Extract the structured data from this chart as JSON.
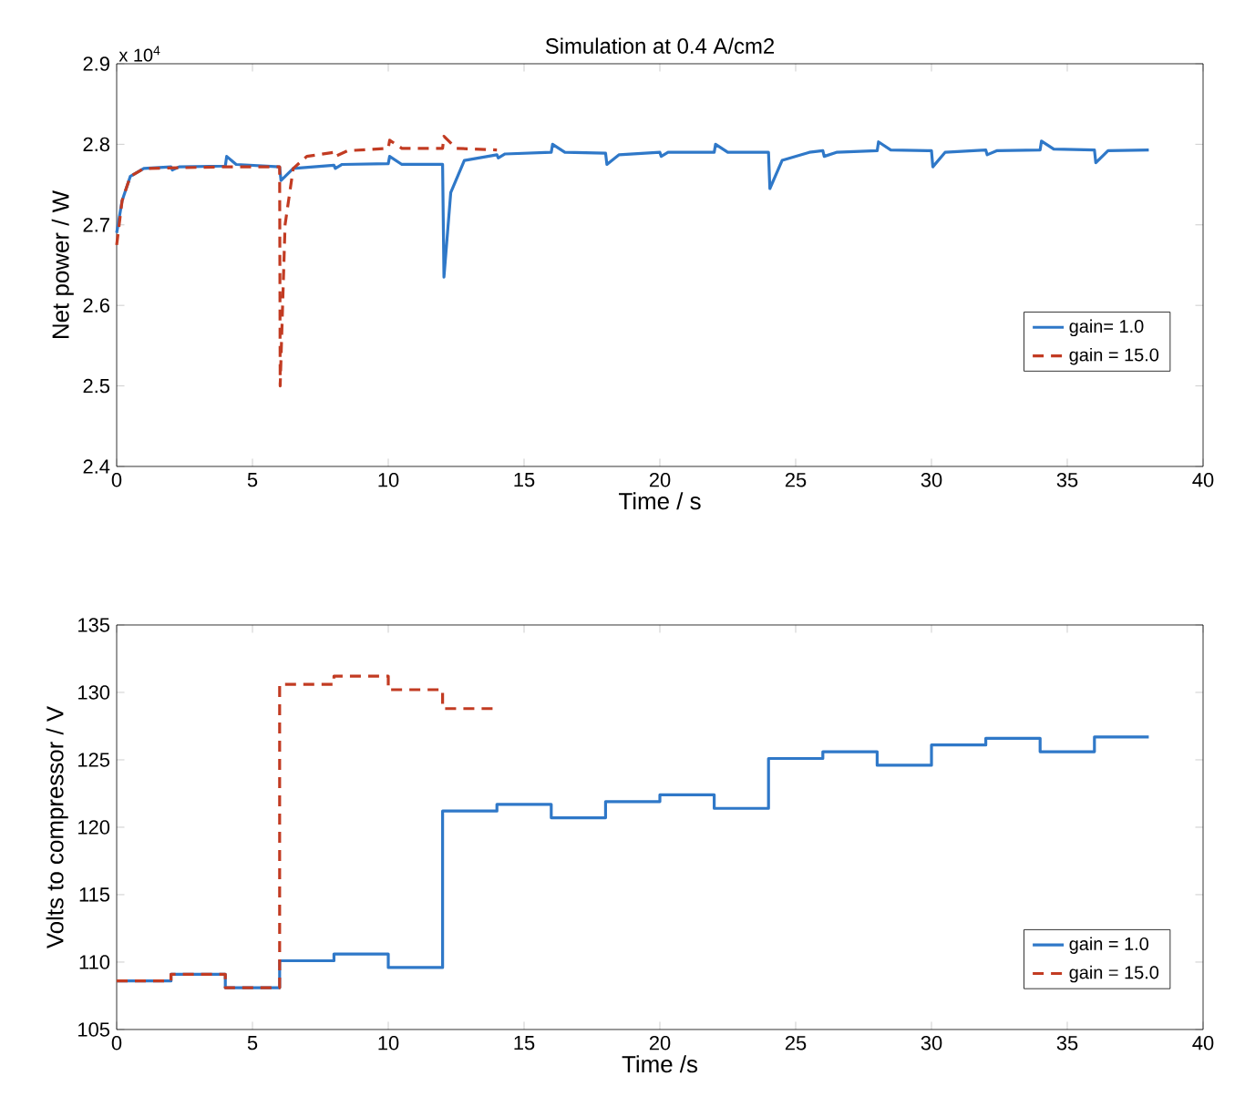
{
  "chart_data": [
    {
      "type": "line",
      "title": "Simulation at 0.4 A/cm2",
      "xlabel": "Time / s",
      "ylabel": "Net power / W",
      "annotations": [
        "x 10$^{4}$"
      ],
      "xlim": [
        0,
        40
      ],
      "xticks": [
        0,
        5,
        10,
        15,
        20,
        25,
        30,
        35,
        40
      ],
      "ylim": [
        2.4,
        2.9
      ],
      "yticks": [
        2.4,
        2.5,
        2.6,
        2.7,
        2.8,
        2.9
      ],
      "grid": false,
      "legend": "right",
      "marker": "none",
      "series": [
        {
          "name": "gain= 1.0",
          "color": "#2f78c8",
          "line_style": "solid",
          "x": [
            0,
            0.2,
            0.5,
            1,
            2,
            2.05,
            2.3,
            4,
            4.05,
            4.4,
            6,
            6.05,
            6.5,
            8,
            8.05,
            8.3,
            10,
            10.05,
            10.5,
            12,
            12.05,
            12.3,
            12.8,
            14,
            14.05,
            14.3,
            16,
            16.05,
            16.5,
            18,
            18.05,
            18.5,
            20,
            20.05,
            20.3,
            22,
            22.05,
            22.5,
            24,
            24.05,
            24.5,
            25.5,
            26,
            26.05,
            26.5,
            28,
            28.05,
            28.5,
            30,
            30.05,
            30.5,
            32,
            32.05,
            32.4,
            34,
            34.05,
            34.5,
            36,
            36.05,
            36.5,
            38
          ],
          "values": [
            2.69,
            2.73,
            2.76,
            2.77,
            2.772,
            2.768,
            2.772,
            2.773,
            2.785,
            2.775,
            2.772,
            2.755,
            2.77,
            2.774,
            2.77,
            2.775,
            2.776,
            2.785,
            2.775,
            2.775,
            2.635,
            2.74,
            2.78,
            2.787,
            2.783,
            2.788,
            2.79,
            2.8,
            2.79,
            2.789,
            2.775,
            2.787,
            2.79,
            2.785,
            2.79,
            2.79,
            2.8,
            2.79,
            2.79,
            2.745,
            2.78,
            2.79,
            2.792,
            2.785,
            2.79,
            2.792,
            2.803,
            2.793,
            2.792,
            2.772,
            2.79,
            2.793,
            2.787,
            2.792,
            2.793,
            2.804,
            2.794,
            2.793,
            2.777,
            2.792,
            2.793
          ]
        },
        {
          "name": "gain = 15.0",
          "color": "#c23b22",
          "line_style": "dashed",
          "x": [
            0,
            0.2,
            0.5,
            1,
            4,
            6,
            6.02,
            6.2,
            6.5,
            7,
            8,
            8.05,
            8.5,
            10,
            10.05,
            10.5,
            12,
            12.05,
            12.5,
            14
          ],
          "values": [
            2.675,
            2.73,
            2.76,
            2.77,
            2.772,
            2.772,
            2.5,
            2.7,
            2.77,
            2.785,
            2.79,
            2.785,
            2.792,
            2.795,
            2.805,
            2.795,
            2.795,
            2.81,
            2.795,
            2.793
          ]
        }
      ]
    },
    {
      "type": "step",
      "xlabel": "Time /s",
      "ylabel": "Volts to compressor / V",
      "xlim": [
        0,
        40
      ],
      "xticks": [
        0,
        5,
        10,
        15,
        20,
        25,
        30,
        35,
        40
      ],
      "ylim": [
        105,
        135
      ],
      "yticks": [
        105,
        110,
        115,
        120,
        125,
        130,
        135
      ],
      "grid": false,
      "legend": "bottom right",
      "marker": "none",
      "series": [
        {
          "name": "gain = 1.0",
          "color": "#2f78c8",
          "line_style": "solid",
          "x": [
            0,
            2,
            4,
            6,
            8,
            10,
            12,
            14,
            16,
            18,
            20,
            22,
            24,
            26,
            28,
            30,
            32,
            34,
            36,
            38
          ],
          "values": [
            108.6,
            109.1,
            108.1,
            110.1,
            110.6,
            109.6,
            121.2,
            121.7,
            120.7,
            121.9,
            122.4,
            121.4,
            125.1,
            125.6,
            124.6,
            126.1,
            126.6,
            125.6,
            126.7,
            126.7
          ]
        },
        {
          "name": "gain = 15.0",
          "color": "#c23b22",
          "line_style": "dashed",
          "x": [
            0,
            2,
            4,
            6,
            8,
            10,
            12,
            14
          ],
          "values": [
            108.6,
            109.1,
            108.1,
            130.6,
            131.2,
            130.2,
            128.8,
            128.8
          ]
        }
      ]
    }
  ]
}
